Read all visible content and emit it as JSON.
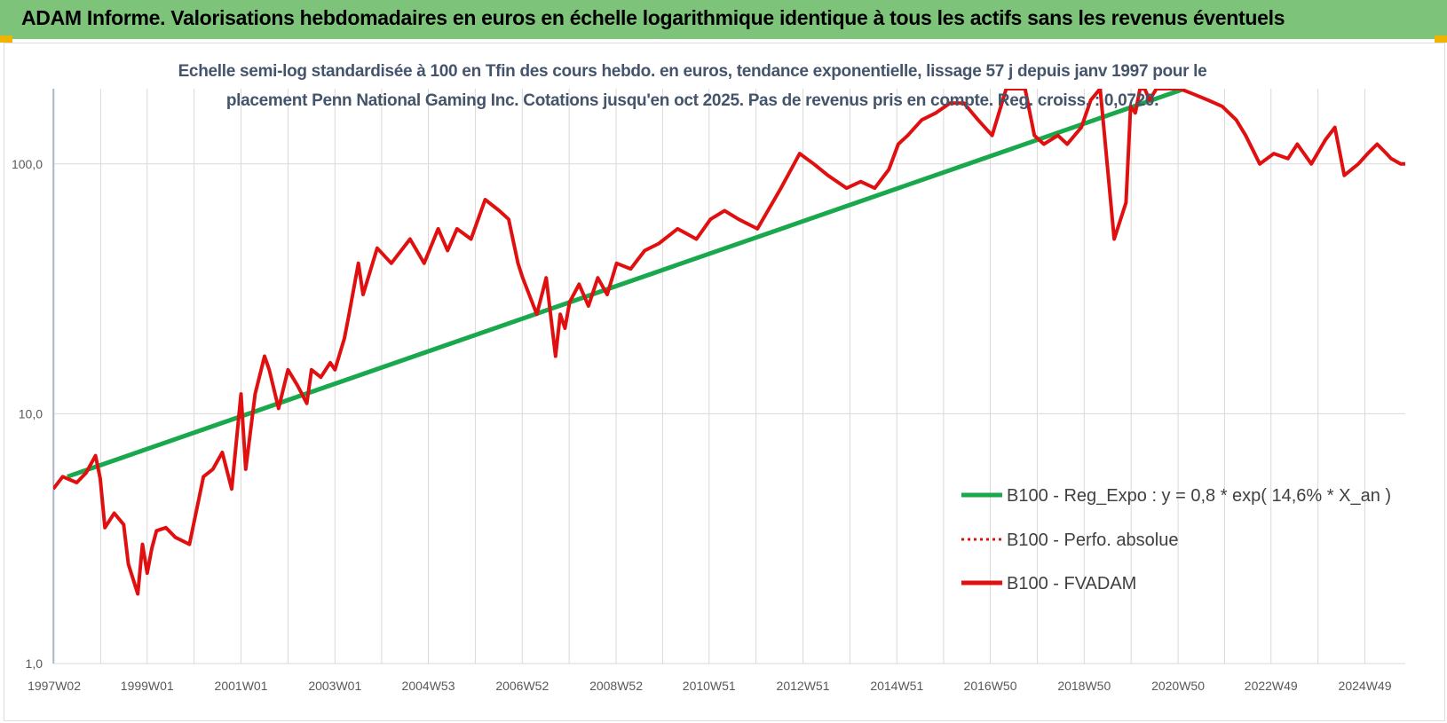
{
  "header": {
    "title": "ADAM Informe. Valorisations hebdomadaires en euros en échelle logarithmique identique à tous les actifs sans les revenus éventuels"
  },
  "colors": {
    "banner": "#7dc47a",
    "trend": "#19a84c",
    "price": "#e01010",
    "grid": "#d9d9d9",
    "title": "#44546a"
  },
  "chart_data": {
    "type": "line",
    "title_lines": [
      "Echelle semi-log standardisée à 100 en Tfin des cours hebdo. en euros, tendance exponentielle, lissage 57 j depuis janv 1997 pour le",
      "placement Penn National Gaming Inc. Cotations jusqu'en oct 2025.  Pas de revenus pris en compte. Reg. croiss. : 0,0720."
    ],
    "y_scale": "log",
    "ylim": [
      1,
      200
    ],
    "y_ticks": [
      1,
      10,
      100
    ],
    "y_tick_labels": [
      "1,0",
      "10,0",
      "100,0"
    ],
    "xlim": [
      1997.0,
      2025.8
    ],
    "x_ticks": [
      1997.02,
      1999.0,
      2001.0,
      2003.0,
      2004.99,
      2006.99,
      2008.99,
      2010.97,
      2012.97,
      2014.97,
      2016.96,
      2018.96,
      2020.96,
      2022.94,
      2024.94
    ],
    "x_tick_labels": [
      "1997W02",
      "1999W01",
      "2001W01",
      "2003W01",
      "2004W53",
      "2006W52",
      "2008W52",
      "2010W51",
      "2012W51",
      "2014W51",
      "2016W50",
      "2018W50",
      "2020W50",
      "2022W49",
      "2024W49"
    ],
    "grid": true,
    "legend_position": "right",
    "series": [
      {
        "name": "B100 - Reg_Expo : y = 0,8 * exp( 14,6% *  X_an )",
        "style": "solid",
        "color": "#19a84c",
        "x": [
          1997.3,
          2021.1
        ],
        "y": [
          5.6,
          200
        ]
      },
      {
        "name": "B100 - Perfo. absolue",
        "style": "dotted",
        "color": "#e01010",
        "x": [],
        "y": []
      },
      {
        "name": "B100 - FVADAM",
        "style": "solid",
        "color": "#e01010",
        "x": [
          1997.0,
          1997.2,
          1997.5,
          1997.7,
          1997.9,
          1998.0,
          1998.1,
          1998.3,
          1998.5,
          1998.6,
          1998.8,
          1998.9,
          1999.0,
          1999.1,
          1999.2,
          1999.4,
          1999.6,
          1999.9,
          2000.2,
          2000.4,
          2000.6,
          2000.8,
          2001.0,
          2001.1,
          2001.3,
          2001.5,
          2001.6,
          2001.8,
          2002.0,
          2002.2,
          2002.4,
          2002.5,
          2002.7,
          2002.9,
          2003.0,
          2003.2,
          2003.3,
          2003.5,
          2003.6,
          2003.9,
          2004.2,
          2004.6,
          2004.9,
          2005.2,
          2005.4,
          2005.6,
          2005.9,
          2006.2,
          2006.5,
          2006.7,
          2006.9,
          2007.0,
          2007.3,
          2007.5,
          2007.7,
          2007.8,
          2007.9,
          2008.0,
          2008.2,
          2008.4,
          2008.6,
          2008.8,
          2009.0,
          2009.3,
          2009.6,
          2009.9,
          2010.3,
          2010.7,
          2011.0,
          2011.3,
          2011.6,
          2012.0,
          2012.5,
          2012.9,
          2013.2,
          2013.5,
          2013.9,
          2014.2,
          2014.5,
          2014.8,
          2015.0,
          2015.2,
          2015.5,
          2015.8,
          2016.1,
          2016.4,
          2016.7,
          2017.0,
          2017.3,
          2017.7,
          2017.9,
          2018.1,
          2018.4,
          2018.6,
          2018.9,
          2019.1,
          2019.3,
          2019.6,
          2019.85,
          2019.95,
          2020.05,
          2020.15,
          2020.25,
          2020.35,
          2020.5,
          2020.7,
          2021.0,
          2021.3,
          2021.6,
          2021.9,
          2022.2,
          2022.4,
          2022.7,
          2023.0,
          2023.3,
          2023.5,
          2023.8,
          2024.1,
          2024.3,
          2024.5,
          2024.8,
          2025.0,
          2025.2,
          2025.4,
          2025.5,
          2025.7,
          2025.8
        ],
        "y": [
          5.0,
          5.6,
          5.3,
          5.8,
          6.8,
          5.5,
          3.5,
          4.0,
          3.6,
          2.5,
          1.9,
          3.0,
          2.3,
          2.9,
          3.4,
          3.5,
          3.2,
          3.0,
          5.6,
          6.0,
          7.0,
          5.0,
          12.0,
          6.0,
          12.0,
          17.0,
          15.0,
          10.5,
          15.0,
          13.0,
          11.0,
          15.0,
          14.0,
          16.0,
          15.0,
          20.0,
          25.0,
          40.0,
          30.0,
          46.0,
          40.0,
          50.0,
          40.0,
          55.0,
          45.0,
          55.0,
          50.0,
          72.0,
          65.0,
          60.0,
          40.0,
          35.0,
          25.0,
          35.0,
          17.0,
          25.0,
          22.0,
          28.0,
          33.0,
          27.0,
          35.0,
          30.0,
          40.0,
          38.0,
          45.0,
          48.0,
          55.0,
          50.0,
          60.0,
          65.0,
          60.0,
          55.0,
          80.0,
          110.0,
          100.0,
          90.0,
          80.0,
          85.0,
          80.0,
          95.0,
          120.0,
          130.0,
          150.0,
          160.0,
          175.0,
          175.0,
          150.0,
          130.0,
          200.0,
          200.0,
          130.0,
          120.0,
          130.0,
          120.0,
          140.0,
          180.0,
          200.0,
          50.0,
          70.0,
          170.0,
          160.0,
          200.0,
          200.0,
          180.0,
          200.0,
          200.0,
          200.0,
          190.0,
          180.0,
          170.0,
          150.0,
          130.0,
          100.0,
          110.0,
          105.0,
          120.0,
          100.0,
          125.0,
          140.0,
          90.0,
          100.0,
          110.0,
          120.0,
          110.0,
          105.0,
          100.0,
          100.0
        ]
      }
    ]
  }
}
